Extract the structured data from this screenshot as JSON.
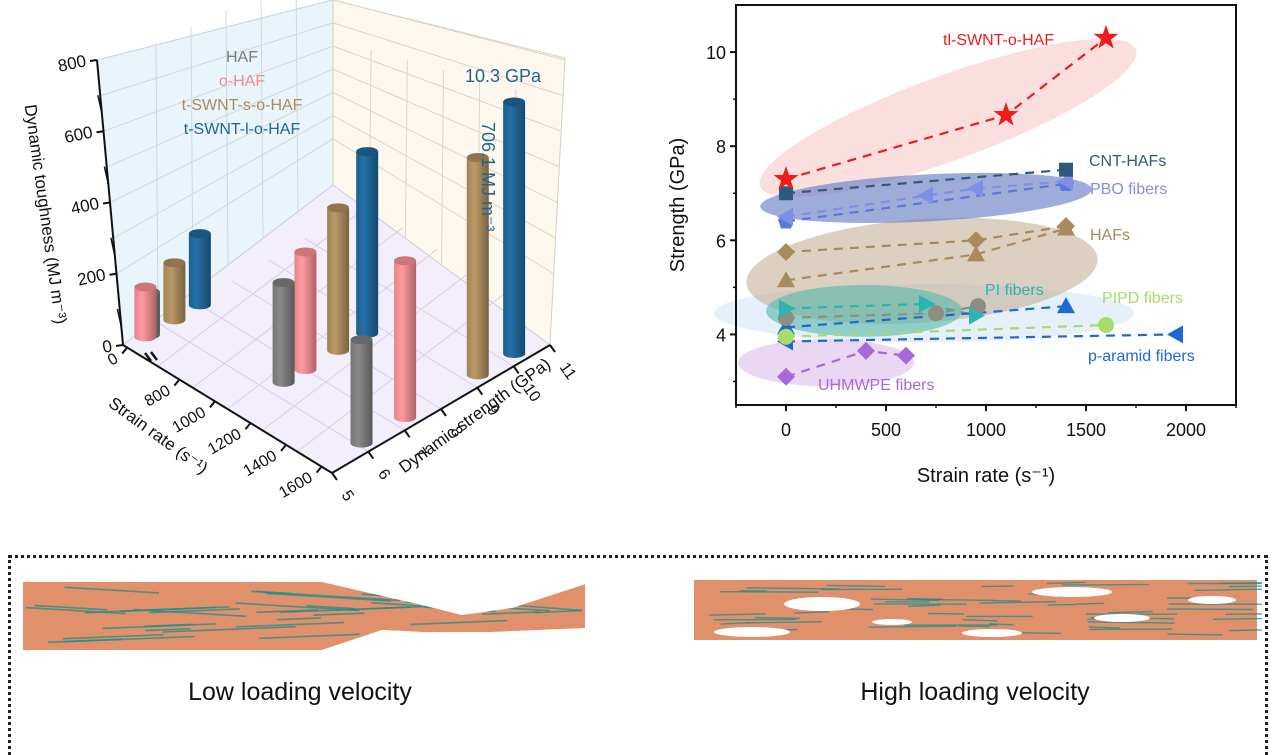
{
  "chart_data": [
    {
      "type": "bar3d",
      "title": "",
      "zlabel": "Dynamic toughness (MJ m⁻³)",
      "xlabel": "Strain rate (s⁻¹)",
      "ylabel": "Dynamic strength (GPa)",
      "z_ticks": [
        "0",
        "200",
        "400",
        "600",
        "800"
      ],
      "zlim": [
        0,
        800
      ],
      "x_ticks": [
        "0",
        "800",
        "1000",
        "1200",
        "1400",
        "1600"
      ],
      "y_ticks": [
        "5",
        "6",
        "7",
        "8",
        "9",
        "10",
        "11"
      ],
      "ylim": [
        5,
        11
      ],
      "legend": [
        {
          "name": "HAF",
          "color": "#7a7a7a"
        },
        {
          "name": "o-HAF",
          "color": "#f08a8f"
        },
        {
          "name": "t-SWNT-s-o-HAF",
          "color": "#a88a5c"
        },
        {
          "name": "t-SWNT-l-o-HAF",
          "color": "#1f6494"
        }
      ],
      "legend_position": "top-left",
      "annotations": [
        "10.3 GPa",
        "706.1 MJ m⁻³"
      ],
      "series": [
        {
          "name": "HAF",
          "color": "#7a7a7a",
          "values": [
            {
              "strain_rate": 0,
              "strength": 5.6,
              "toughness": 120
            },
            {
              "strain_rate": 1100,
              "strength": 6.4,
              "toughness": 280
            },
            {
              "strain_rate": 1600,
              "strength": 6.1,
              "toughness": 290
            }
          ]
        },
        {
          "name": "o-HAF",
          "color": "#f08a8f",
          "values": [
            {
              "strain_rate": 0,
              "strength": 5.5,
              "toughness": 140
            },
            {
              "strain_rate": 1100,
              "strength": 7.0,
              "toughness": 330
            },
            {
              "strain_rate": 1600,
              "strength": 7.3,
              "toughness": 440
            }
          ]
        },
        {
          "name": "t-SWNT-s-o-HAF",
          "color": "#a88a5c",
          "values": [
            {
              "strain_rate": 0,
              "strength": 6.3,
              "toughness": 160
            },
            {
              "strain_rate": 1100,
              "strength": 7.9,
              "toughness": 400
            },
            {
              "strain_rate": 1600,
              "strength": 9.3,
              "toughness": 610
            }
          ]
        },
        {
          "name": "t-SWNT-l-o-HAF",
          "color": "#1f6494",
          "values": [
            {
              "strain_rate": 0,
              "strength": 7.0,
              "toughness": 200
            },
            {
              "strain_rate": 1100,
              "strength": 8.7,
              "toughness": 510
            },
            {
              "strain_rate": 1600,
              "strength": 10.3,
              "toughness": 706.1
            }
          ]
        }
      ]
    },
    {
      "type": "scatter",
      "title": "",
      "xlabel": "Strain rate (s⁻¹)",
      "ylabel": "Strength (GPa)",
      "xlim": [
        -250,
        2250
      ],
      "ylim": [
        2.5,
        11
      ],
      "x_ticks": [
        0,
        500,
        1000,
        1500,
        2000
      ],
      "y_ticks": [
        4,
        6,
        8,
        10
      ],
      "grid": false,
      "series": [
        {
          "name": "tl-SWNT-o-HAF",
          "label": "tl-SWNT-o-HAF",
          "color": "#ee1c1c",
          "marker": "star",
          "x": [
            0,
            1100,
            1600
          ],
          "y": [
            7.3,
            8.66,
            10.3
          ]
        },
        {
          "name": "CNT-HAFs",
          "label": "CNT-HAFs",
          "color": "#2e5a80",
          "marker": "square",
          "x": [
            0,
            1400
          ],
          "y": [
            7.0,
            7.5
          ]
        },
        {
          "name": "PBO fibers",
          "label": "PBO fibers",
          "color": "#7f8ee6",
          "marker": "triangle-left",
          "x": [
            0,
            700,
            950,
            1400
          ],
          "y": [
            6.5,
            6.95,
            7.1,
            7.25
          ]
        },
        {
          "name": "PBO fibers (2)",
          "label": "",
          "color": "#5b78d8",
          "marker": "pentagon",
          "x": [
            0,
            1400
          ],
          "y": [
            6.4,
            7.2
          ]
        },
        {
          "name": "HAFs (diamond)",
          "label": "HAFs",
          "color": "#a88a5c",
          "marker": "diamond",
          "x": [
            0,
            950,
            1400
          ],
          "y": [
            5.75,
            6.0,
            6.3
          ]
        },
        {
          "name": "HAFs (triangle)",
          "label": "",
          "color": "#a88a5c",
          "marker": "triangle-up",
          "x": [
            0,
            950,
            1400
          ],
          "y": [
            5.15,
            5.7,
            6.25
          ]
        },
        {
          "name": "PI fibers",
          "label": "PI fibers",
          "color": "#2bb5b0",
          "marker": "triangle-right",
          "x": [
            0,
            700,
            950
          ],
          "y": [
            4.55,
            4.65,
            4.4
          ]
        },
        {
          "name": "HAF (circle)",
          "label": "",
          "color": "#8a8f80",
          "marker": "circle",
          "x": [
            0,
            750,
            960
          ],
          "y": [
            4.35,
            4.45,
            4.6
          ]
        },
        {
          "name": "PIPD fibers",
          "label": "PIPD fibers",
          "color": "#a6dc6a",
          "marker": "circle",
          "x": [
            0,
            1600
          ],
          "y": [
            3.95,
            4.2
          ]
        },
        {
          "name": "p-aramid fibers (up)",
          "label": "",
          "color": "#1e68d6",
          "marker": "triangle-up",
          "x": [
            0,
            1400
          ],
          "y": [
            4.15,
            4.6
          ]
        },
        {
          "name": "p-aramid fibers",
          "label": "p-aramid fibers",
          "color": "#1e68d6",
          "marker": "triangle-left",
          "x": [
            0,
            1950
          ],
          "y": [
            3.85,
            4.0
          ]
        },
        {
          "name": "UHMWPE fibers",
          "label": "UHMWPE fibers",
          "color": "#a56ad8",
          "marker": "diamond",
          "x": [
            0,
            400,
            600
          ],
          "y": [
            3.1,
            3.65,
            3.55
          ]
        }
      ],
      "groups": [
        {
          "name": "tl-SWNT-o-HAF region",
          "color": "#f8c4c4"
        },
        {
          "name": "CNT/PBO region",
          "color": "#6a7fc4"
        },
        {
          "name": "HAFs region",
          "color": "#c0ab8e"
        },
        {
          "name": "PI region",
          "color": "#5ab8a9"
        },
        {
          "name": "p-aramid region",
          "color": "#cfe3f6"
        },
        {
          "name": "UHMWPE region",
          "color": "#d9b6ea"
        }
      ]
    }
  ],
  "bottom_panel": {
    "left_label": "Low loading velocity",
    "right_label": "High loading velocity",
    "fiber_color": "#e0906a",
    "chain_color": "#1d8d8d"
  }
}
